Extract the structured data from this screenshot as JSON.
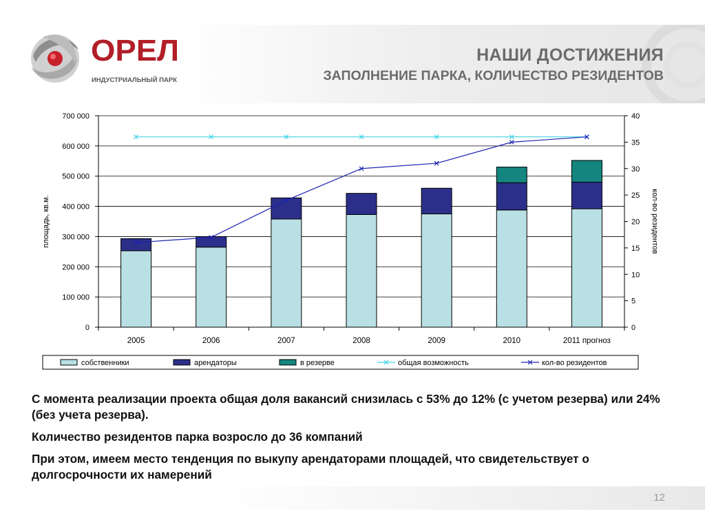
{
  "header": {
    "logo_text": "ОРЕЛ",
    "logo_subtext": "ИНДУСТРИАЛЬНЫЙ ПАРК",
    "title": "НАШИ ДОСТИЖЕНИЯ",
    "subtitle": "ЗАПОЛНЕНИЕ ПАРКА, КОЛИЧЕСТВО РЕЗИДЕНТОВ"
  },
  "colors": {
    "owners": "#b9e0e4",
    "tenants": "#2c2f8a",
    "reserve": "#14857f",
    "capacity": "#41d3e6",
    "residents": "#1a22b0",
    "brand_red": "#b21e28"
  },
  "chart_data": {
    "type": "bar",
    "stacked": true,
    "categories": [
      "2005",
      "2006",
      "2007",
      "2008",
      "2009",
      "2010",
      "2011 прогноз"
    ],
    "series": [
      {
        "name": "собственники",
        "axis": "left",
        "values": [
          253000,
          265000,
          358000,
          373000,
          375000,
          388000,
          392000
        ]
      },
      {
        "name": "арендаторы",
        "axis": "left",
        "values": [
          40000,
          35000,
          70000,
          70000,
          85000,
          90000,
          88000
        ]
      },
      {
        "name": "в резерве",
        "axis": "left",
        "values": [
          0,
          0,
          0,
          0,
          0,
          52000,
          72000
        ]
      },
      {
        "name": "общая возможность",
        "axis": "left",
        "type": "line",
        "values": [
          630000,
          630000,
          630000,
          630000,
          630000,
          630000,
          630000
        ]
      },
      {
        "name": "кол-во резидентов",
        "axis": "right",
        "type": "line",
        "values": [
          16,
          17,
          24,
          30,
          31,
          35,
          36
        ]
      }
    ],
    "ylabel": "площадь, кв.м.",
    "y2label": "кол-во резидентов",
    "ylim": [
      0,
      700000
    ],
    "y2lim": [
      0,
      40
    ],
    "yticks": [
      "0",
      "100 000",
      "200 000",
      "300 000",
      "400 000",
      "500 000",
      "600 000",
      "700 000"
    ],
    "y2ticks": [
      "0",
      "5",
      "10",
      "15",
      "20",
      "25",
      "30",
      "35",
      "40"
    ],
    "grid": "horizontal",
    "legend": "bottom"
  },
  "body": {
    "p1": "С момента реализации проекта общая доля вакансий снизилась с 53% до 12% (с учетом резерва) или 24% (без учета резерва).",
    "p2": "Количество резидентов парка возросло до 36 компаний",
    "p3": "При этом, имеем место тенденция по выкупу арендаторами площадей, что свидетельствует о долгосрочности их намерений"
  },
  "page_number": "12"
}
